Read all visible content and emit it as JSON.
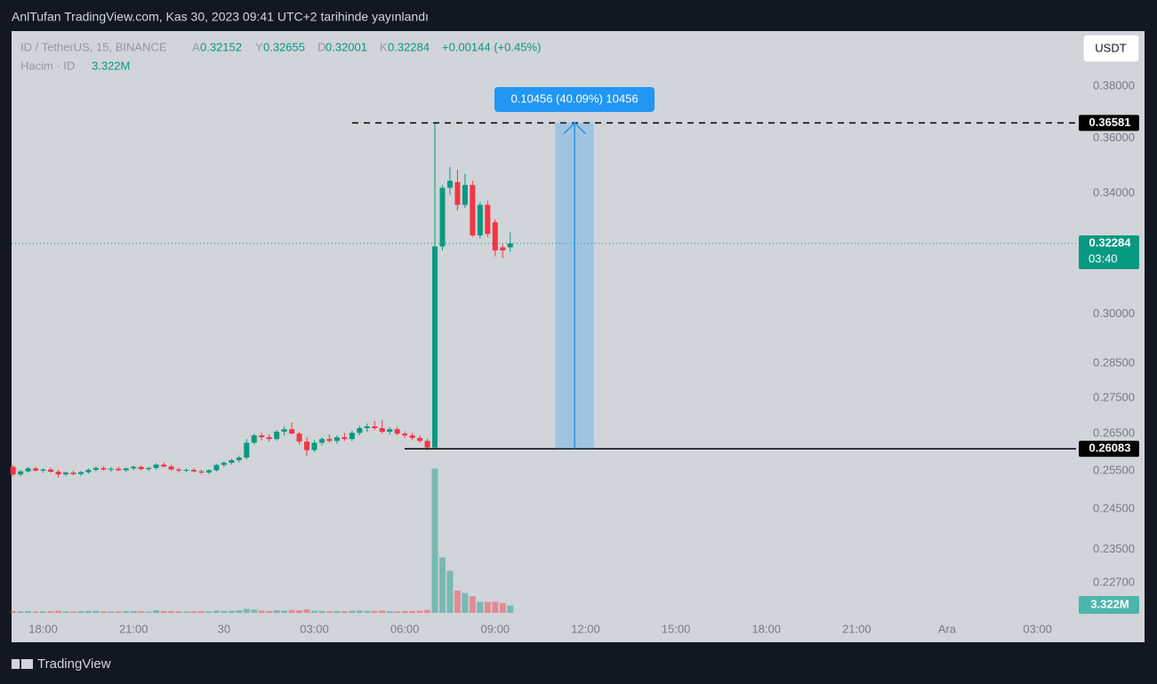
{
  "header": {
    "title": "AnlTufan TradingView.com, Kas 30, 2023 09:41 UTC+2 tarihinde yayınlandı"
  },
  "footer": {
    "brand": "TradingView"
  },
  "chart_data": {
    "type": "candlestick",
    "currency_button": "USDT",
    "legend_letters": {
      "open": "A",
      "high": "Y",
      "low": "D",
      "close": "K"
    },
    "change_label": "+0.00144 (+0.45%)",
    "countdown": "03:40",
    "log_scale": true,
    "ylim": [
      0.2134,
      0.4024
    ],
    "yticks": [
      {
        "value": 0.38,
        "label": "0.38000"
      },
      {
        "value": 0.36,
        "label": "0.36000"
      },
      {
        "value": 0.34,
        "label": "0.34000"
      },
      {
        "value": 0.3,
        "label": "0.30000"
      },
      {
        "value": 0.285,
        "label": "0.28500"
      },
      {
        "value": 0.275,
        "label": "0.27500"
      },
      {
        "value": 0.265,
        "label": "0.26500"
      },
      {
        "value": 0.255,
        "label": "0.25500"
      },
      {
        "value": 0.245,
        "label": "0.24500"
      },
      {
        "value": 0.235,
        "label": "0.23500"
      },
      {
        "value": 0.227,
        "label": "0.22700"
      }
    ],
    "xtick_labels": [
      "18:00",
      "21:00",
      "30",
      "03:00",
      "06:00",
      "09:00",
      "12:00",
      "15:00",
      "18:00",
      "21:00",
      "Ara",
      "03:00"
    ],
    "measure": {
      "label": "0.10456 (40.09%) 10456",
      "color": "#2196f3"
    },
    "series": [
      {
        "name": "ID / TetherUS, 15, BINANCE",
        "up_color": "#089981",
        "down_color": "#f23645",
        "open": [
          0.256,
          0.254,
          0.2548,
          0.2556,
          0.255,
          0.2553,
          0.2547,
          0.254,
          0.2545,
          0.2541,
          0.2546,
          0.2552,
          0.2557,
          0.2553,
          0.2555,
          0.2551,
          0.2556,
          0.256,
          0.2554,
          0.2557,
          0.2566,
          0.2561,
          0.2553,
          0.255,
          0.2552,
          0.2548,
          0.2545,
          0.2551,
          0.2565,
          0.2571,
          0.2578,
          0.2585,
          0.2625,
          0.2645,
          0.264,
          0.2635,
          0.2655,
          0.2662,
          0.265,
          0.2628,
          0.2605,
          0.2625,
          0.2635,
          0.263,
          0.264,
          0.2635,
          0.2652,
          0.2665,
          0.267,
          0.2665,
          0.2655,
          0.2662,
          0.265,
          0.2645,
          0.2638,
          0.263,
          0.2612,
          0.3218,
          0.342,
          0.344,
          0.336,
          0.343,
          0.3255,
          0.336,
          0.33,
          0.3215,
          0.32152
        ],
        "high": [
          0.2565,
          0.2552,
          0.256,
          0.256,
          0.2556,
          0.2558,
          0.2552,
          0.2548,
          0.255,
          0.2549,
          0.2556,
          0.2561,
          0.2562,
          0.2559,
          0.256,
          0.2558,
          0.2564,
          0.2563,
          0.256,
          0.257,
          0.2572,
          0.2566,
          0.2558,
          0.2556,
          0.2557,
          0.2553,
          0.2554,
          0.2568,
          0.2575,
          0.2582,
          0.259,
          0.2635,
          0.265,
          0.2652,
          0.2648,
          0.266,
          0.267,
          0.268,
          0.2655,
          0.264,
          0.2632,
          0.264,
          0.2648,
          0.2645,
          0.2652,
          0.2658,
          0.2672,
          0.2678,
          0.2685,
          0.2688,
          0.2668,
          0.2668,
          0.2656,
          0.2652,
          0.2645,
          0.2636,
          0.36581,
          0.343,
          0.3495,
          0.3485,
          0.347,
          0.3445,
          0.337,
          0.3375,
          0.331,
          0.3225,
          0.32655
        ],
        "low": [
          0.2535,
          0.2535,
          0.2545,
          0.2548,
          0.2544,
          0.2545,
          0.2532,
          0.2536,
          0.2538,
          0.2536,
          0.2542,
          0.2548,
          0.255,
          0.2547,
          0.2549,
          0.2546,
          0.2551,
          0.255,
          0.2549,
          0.2553,
          0.2558,
          0.255,
          0.2545,
          0.2546,
          0.2545,
          0.2541,
          0.2541,
          0.2548,
          0.256,
          0.2566,
          0.2572,
          0.258,
          0.262,
          0.2632,
          0.2628,
          0.263,
          0.2645,
          0.2648,
          0.262,
          0.259,
          0.26,
          0.2618,
          0.2625,
          0.2622,
          0.263,
          0.263,
          0.2645,
          0.2655,
          0.266,
          0.265,
          0.2648,
          0.2645,
          0.2638,
          0.2632,
          0.2625,
          0.2605,
          0.26083,
          0.3205,
          0.3395,
          0.334,
          0.335,
          0.325,
          0.3245,
          0.325,
          0.3185,
          0.318,
          0.32001
        ],
        "close": [
          0.254,
          0.2548,
          0.2556,
          0.255,
          0.2553,
          0.2547,
          0.254,
          0.2545,
          0.2541,
          0.2546,
          0.2552,
          0.2557,
          0.2553,
          0.2555,
          0.2551,
          0.2556,
          0.256,
          0.2554,
          0.2557,
          0.2566,
          0.2561,
          0.2553,
          0.255,
          0.2552,
          0.2548,
          0.2545,
          0.2551,
          0.2565,
          0.2571,
          0.2578,
          0.2585,
          0.2625,
          0.2645,
          0.264,
          0.2635,
          0.2655,
          0.2662,
          0.265,
          0.2628,
          0.2605,
          0.2625,
          0.2635,
          0.263,
          0.264,
          0.2635,
          0.2652,
          0.2665,
          0.267,
          0.2665,
          0.2655,
          0.2662,
          0.265,
          0.2645,
          0.2638,
          0.263,
          0.2612,
          0.3218,
          0.342,
          0.3445,
          0.336,
          0.343,
          0.3255,
          0.336,
          0.326,
          0.3205,
          0.3205,
          0.32284
        ]
      },
      {
        "name": "Hacim · ID",
        "vlim": [
          0,
          80000000
        ],
        "values": [
          900000,
          700000,
          800000,
          600000,
          700000,
          800000,
          1000000,
          700000,
          600000,
          800000,
          900000,
          1000000,
          700000,
          600000,
          700000,
          800000,
          900000,
          700000,
          600000,
          1200000,
          900000,
          800000,
          700000,
          600000,
          700000,
          800000,
          700000,
          1100000,
          900000,
          1000000,
          1200000,
          1800000,
          1500000,
          1000000,
          900000,
          1200000,
          1100000,
          1300000,
          1200000,
          1600000,
          1000000,
          900000,
          800000,
          900000,
          800000,
          1000000,
          1100000,
          900000,
          1000000,
          1100000,
          800000,
          700000,
          800000,
          900000,
          1000000,
          1300000,
          65000000,
          25000000,
          19000000,
          10000000,
          9000000,
          7500000,
          5000000,
          5000000,
          5000000,
          4500000,
          3322000
        ],
        "value_labels": [
          null,
          null,
          null,
          null,
          null,
          null,
          null,
          null,
          null,
          null,
          null,
          null,
          null,
          null,
          null,
          null,
          null,
          null,
          null,
          null,
          null,
          null,
          null,
          null,
          null,
          null,
          null,
          null,
          null,
          null,
          null,
          null,
          null,
          null,
          null,
          null,
          null,
          null,
          null,
          null,
          null,
          null,
          null,
          null,
          null,
          null,
          null,
          null,
          null,
          null,
          null,
          null,
          null,
          null,
          null,
          null,
          null,
          null,
          null,
          null,
          null,
          null,
          null,
          null,
          null,
          null,
          "3.322M"
        ]
      }
    ]
  }
}
